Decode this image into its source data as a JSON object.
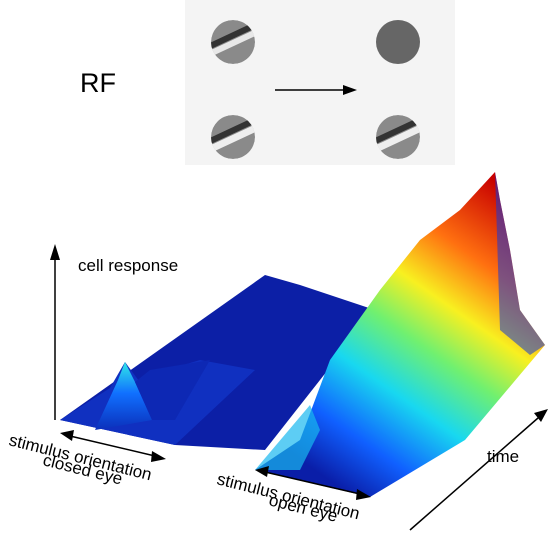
{
  "rf_label": "RF",
  "axis": {
    "response": "cell response",
    "time": "time"
  },
  "panels": [
    {
      "x_label": "stimulus orientation",
      "condition": "closed eye"
    },
    {
      "x_label": "stimulus orientation",
      "condition": "open eye"
    }
  ]
}
